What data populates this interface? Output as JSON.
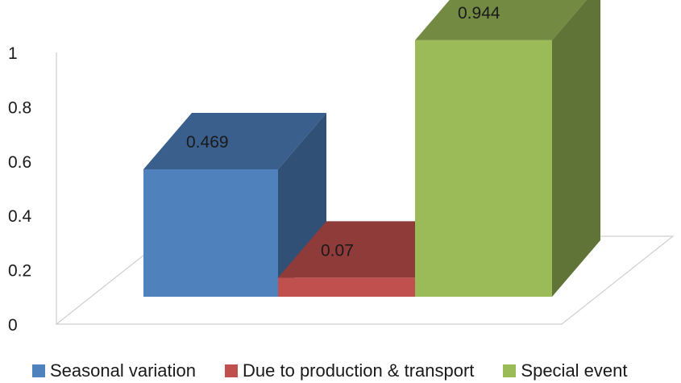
{
  "chart_data": {
    "type": "bar",
    "style": "3d-column",
    "categories": [
      "Seasonal variation",
      "Due to production & transport",
      "Special event"
    ],
    "values": [
      0.469,
      0.07,
      0.944
    ],
    "data_labels": [
      "0.469",
      "0.07",
      "0.944"
    ],
    "ylim": [
      0,
      1
    ],
    "yticks": [
      "0",
      "0.2",
      "0.4",
      "0.6",
      "0.8",
      "1"
    ],
    "grid": false,
    "legend": "bottom",
    "colors": [
      "#4f81bd",
      "#c0504d",
      "#9bbb59"
    ]
  }
}
